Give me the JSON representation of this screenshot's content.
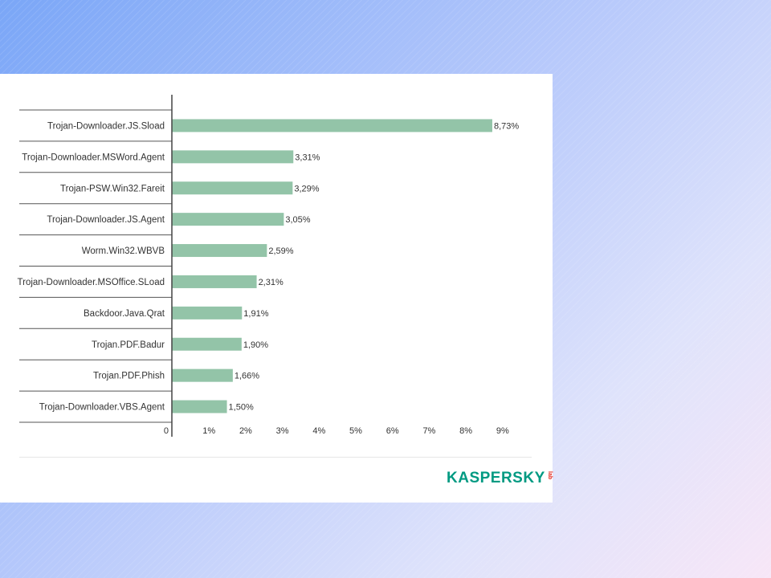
{
  "chart_data": {
    "type": "bar",
    "orientation": "horizontal",
    "categories": [
      "Trojan-Downloader.JS.Sload",
      "Trojan-Downloader.MSWord.Agent",
      "Trojan-PSW.Win32.Fareit",
      "Trojan-Downloader.JS.Agent",
      "Worm.Win32.WBVB",
      "Trojan-Downloader.MSOffice.SLoad",
      "Backdoor.Java.Qrat",
      "Trojan.PDF.Badur",
      "Trojan.PDF.Phish",
      "Trojan-Downloader.VBS.Agent"
    ],
    "values": [
      8.73,
      3.31,
      3.29,
      3.05,
      2.59,
      2.31,
      1.91,
      1.9,
      1.66,
      1.5
    ],
    "data_labels": [
      "8,73%",
      "3,31%",
      "3,29%",
      "3,05%",
      "2,59%",
      "2,31%",
      "1,91%",
      "1,90%",
      "1,66%",
      "1,50%"
    ],
    "x_ticks": [
      "0",
      "1%",
      "2%",
      "3%",
      "4%",
      "5%",
      "6%",
      "7%",
      "8%",
      "9%"
    ],
    "xlim": [
      0,
      9
    ],
    "bar_color": "#93c4a8",
    "grid": false
  },
  "brand": {
    "word": "KASPERSKY",
    "suffix": "lab",
    "color": "#009a82",
    "suffix_color": "#e2231a"
  }
}
